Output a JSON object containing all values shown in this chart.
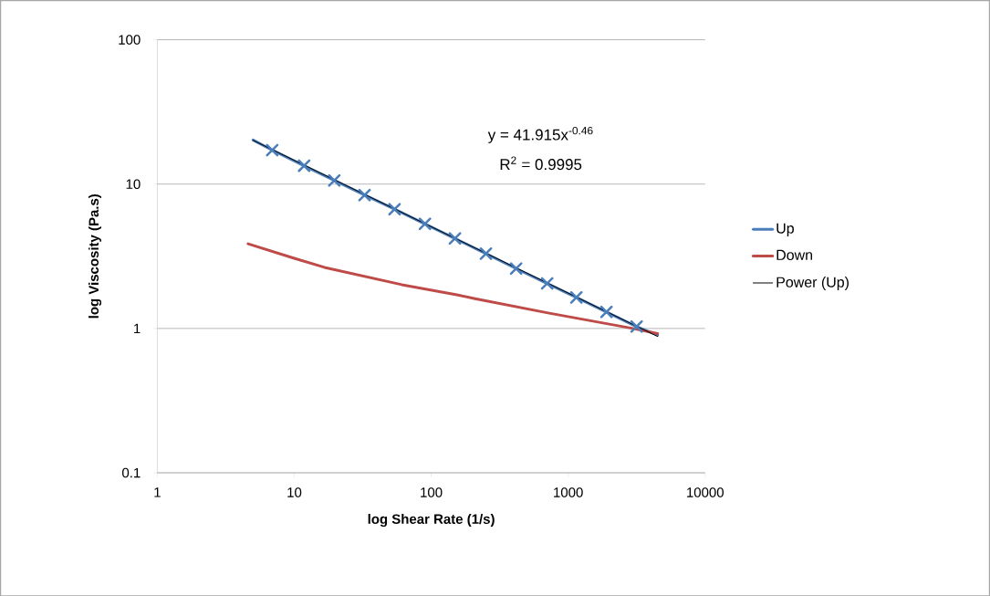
{
  "chart_data": {
    "type": "line",
    "xlabel": "log Shear Rate (1/s)",
    "ylabel": "log Viscosity (Pa.s)",
    "log": "xy",
    "xlim": [
      1,
      10000
    ],
    "ylim": [
      0.1,
      100
    ],
    "xticks": [
      1,
      10,
      100,
      1000,
      10000
    ],
    "yticks": [
      0.1,
      1,
      10,
      100
    ],
    "grid": "y",
    "legend": "right",
    "line_style": "solid",
    "annotations": [
      "y = 41.915x$^{-0.46}$",
      "R$^{2}$ = 0.9995"
    ],
    "series": [
      {
        "name": "Up",
        "color": "#4a7ebb",
        "marker": "cross",
        "x": [
          5,
          6.9,
          11.8,
          19.6,
          32.6,
          54,
          90,
          149,
          251,
          417,
          703,
          1148,
          1905,
          3162,
          4500
        ],
        "values": [
          20.2,
          17.2,
          13.4,
          10.6,
          8.4,
          6.7,
          5.3,
          4.2,
          3.3,
          2.6,
          2.05,
          1.64,
          1.3,
          1.03,
          0.9
        ]
      },
      {
        "name": "Down",
        "color": "#be4b48",
        "x": [
          4.6,
          10,
          16.6,
          61,
          154,
          209,
          713,
          2973,
          4500
        ],
        "values": [
          3.86,
          3.06,
          2.65,
          2.01,
          1.71,
          1.61,
          1.28,
          1.0,
          0.92
        ]
      },
      {
        "name": "Power (Up)",
        "color": "#000000",
        "x": [
          5,
          4500
        ],
        "values": [
          20.1,
          0.88
        ]
      }
    ]
  }
}
